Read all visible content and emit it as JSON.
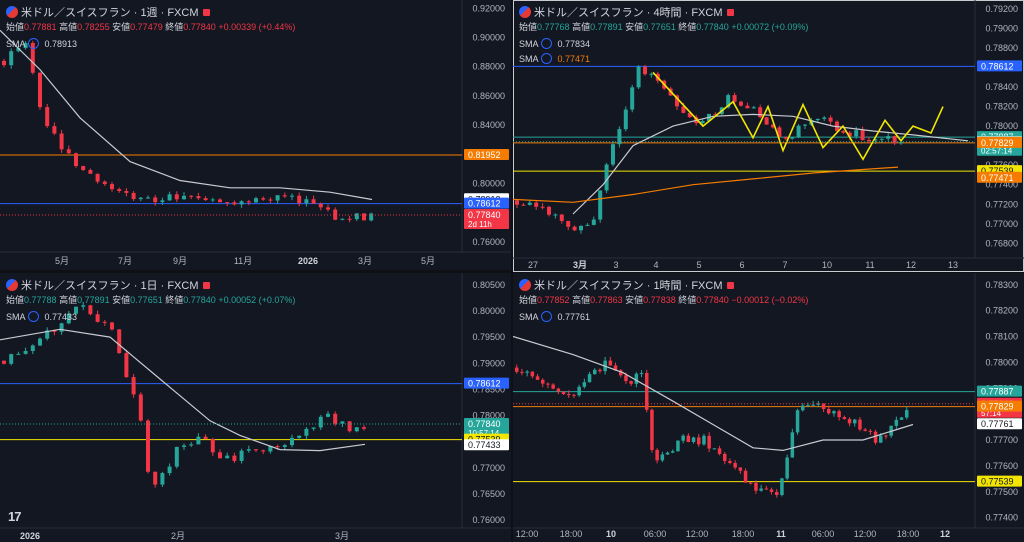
{
  "chart_data": [
    {
      "type": "candlestick",
      "title": "米ドル／スイスフラン · 1週 · FXCM",
      "ohlc": {
        "open_label": "始値",
        "open": "0.77881",
        "high_label": "高値",
        "high": "0.78255",
        "low_label": "安値",
        "low": "0.77479",
        "close_label": "終値",
        "close": "0.77840",
        "change": "+0.00339 (+0.44%)"
      },
      "sma_label": "SMA",
      "sma_value": "0.78913",
      "y_ticks": [
        "0.92000",
        "0.90000",
        "0.88000",
        "0.86000",
        "0.84000",
        "0.82000",
        "0.80000",
        "0.78000",
        "0.76000"
      ],
      "x_ticks": [
        "5月",
        "7月",
        "9月",
        "11月",
        "2026",
        "3月",
        "5月"
      ],
      "ylim": [
        0.753,
        0.923
      ],
      "price_labels": [
        {
          "value": 0.81952,
          "text": "0.81952",
          "color": "#f57c00"
        },
        {
          "value": 0.78913,
          "text": "0.78913",
          "color": "#ffffff"
        },
        {
          "value": 0.78612,
          "text": "0.78612",
          "color": "#2962ff"
        },
        {
          "value": 0.7784,
          "text": "0.77840",
          "color": "#f23645",
          "sub": "2d 11h"
        }
      ]
    },
    {
      "type": "candlestick",
      "title": "米ドル／スイスフラン · 4時間 · FXCM",
      "ohlc": {
        "open_label": "始値",
        "open": "0.77768",
        "high_label": "高値",
        "high": "0.77891",
        "low_label": "安値",
        "low": "0.77651",
        "close_label": "終値",
        "close": "0.77840",
        "change": "+0.00072 (+0.09%)"
      },
      "sma_label": "SMA",
      "sma_value": "0.77834",
      "sma2_label": "SMA",
      "sma2_value": "0.77471",
      "y_ticks": [
        "0.79200",
        "0.79000",
        "0.78800",
        "0.78600",
        "0.78400",
        "0.78200",
        "0.78000",
        "0.77800",
        "0.77600",
        "0.77400",
        "0.77200",
        "0.77000",
        "0.76800"
      ],
      "x_ticks": [
        "27",
        "3月",
        "3",
        "4",
        "5",
        "6",
        "7",
        "10",
        "11",
        "12",
        "13"
      ],
      "ylim": [
        0.7665,
        0.7925
      ],
      "price_labels": [
        {
          "value": 0.78612,
          "text": "0.78612",
          "color": "#2962ff"
        },
        {
          "value": 0.77887,
          "text": "0.77887",
          "color": "#26a69a"
        },
        {
          "value": 0.7784,
          "text": "0.77840",
          "color": "#26a69a",
          "sub": "02:57:14"
        },
        {
          "value": 0.77834,
          "text": "0.77834",
          "color": "#ffffff"
        },
        {
          "value": 0.77829,
          "text": "0.77829",
          "color": "#f57c00"
        },
        {
          "value": 0.77539,
          "text": "0.77539",
          "color": "#f2e600"
        },
        {
          "value": 0.77471,
          "text": "0.77471",
          "color": "#f57c00"
        }
      ]
    },
    {
      "type": "candlestick",
      "title": "米ドル／スイスフラン · 1日 · FXCM",
      "ohlc": {
        "open_label": "始値",
        "open": "0.77788",
        "high_label": "高値",
        "high": "0.77891",
        "low_label": "安値",
        "low": "0.77651",
        "close_label": "終値",
        "close": "0.77840",
        "change": "+0.00052 (+0.07%)"
      },
      "sma_label": "SMA",
      "sma_value": "0.77433",
      "y_ticks": [
        "0.80500",
        "0.80000",
        "0.79500",
        "0.79000",
        "0.78500",
        "0.78000",
        "0.77500",
        "0.77000",
        "0.76500",
        "0.76000"
      ],
      "x_ticks": [
        "2026",
        "2月",
        "3月"
      ],
      "ylim": [
        0.7585,
        0.8065
      ],
      "price_labels": [
        {
          "value": 0.78612,
          "text": "0.78612",
          "color": "#2962ff"
        },
        {
          "value": 0.7784,
          "text": "0.77840",
          "color": "#26a69a",
          "sub": "10:57:14"
        },
        {
          "value": 0.77539,
          "text": "0.77539",
          "color": "#f2e600"
        },
        {
          "value": 0.77433,
          "text": "0.77433",
          "color": "#ffffff"
        }
      ]
    },
    {
      "type": "candlestick",
      "title": "米ドル／スイスフラン · 1時間 · FXCM",
      "ohlc": {
        "open_label": "始値",
        "open": "0.77852",
        "high_label": "高値",
        "high": "0.77863",
        "low_label": "安値",
        "low": "0.77838",
        "close_label": "終値",
        "close": "0.77840",
        "change": "−0.00012 (−0.02%)"
      },
      "sma_label": "SMA",
      "sma_value": "0.77761",
      "y_ticks": [
        "0.78300",
        "0.78200",
        "0.78100",
        "0.78000",
        "0.77900",
        "0.77800",
        "0.77700",
        "0.77600",
        "0.77500",
        "0.77400"
      ],
      "x_ticks": [
        "12:00",
        "18:00",
        "10",
        "06:00",
        "12:00",
        "18:00",
        "11",
        "06:00",
        "12:00",
        "18:00",
        "12"
      ],
      "ylim": [
        0.7736,
        0.7833
      ],
      "price_labels": [
        {
          "value": 0.77887,
          "text": "0.77887",
          "color": "#26a69a"
        },
        {
          "value": 0.7784,
          "text": "0.77840",
          "color": "#f23645",
          "sub": "57:14"
        },
        {
          "value": 0.77829,
          "text": "0.77829",
          "color": "#f57c00"
        },
        {
          "value": 0.77761,
          "text": "0.77761",
          "color": "#ffffff"
        },
        {
          "value": 0.77539,
          "text": "0.77539",
          "color": "#f2e600"
        }
      ]
    }
  ]
}
